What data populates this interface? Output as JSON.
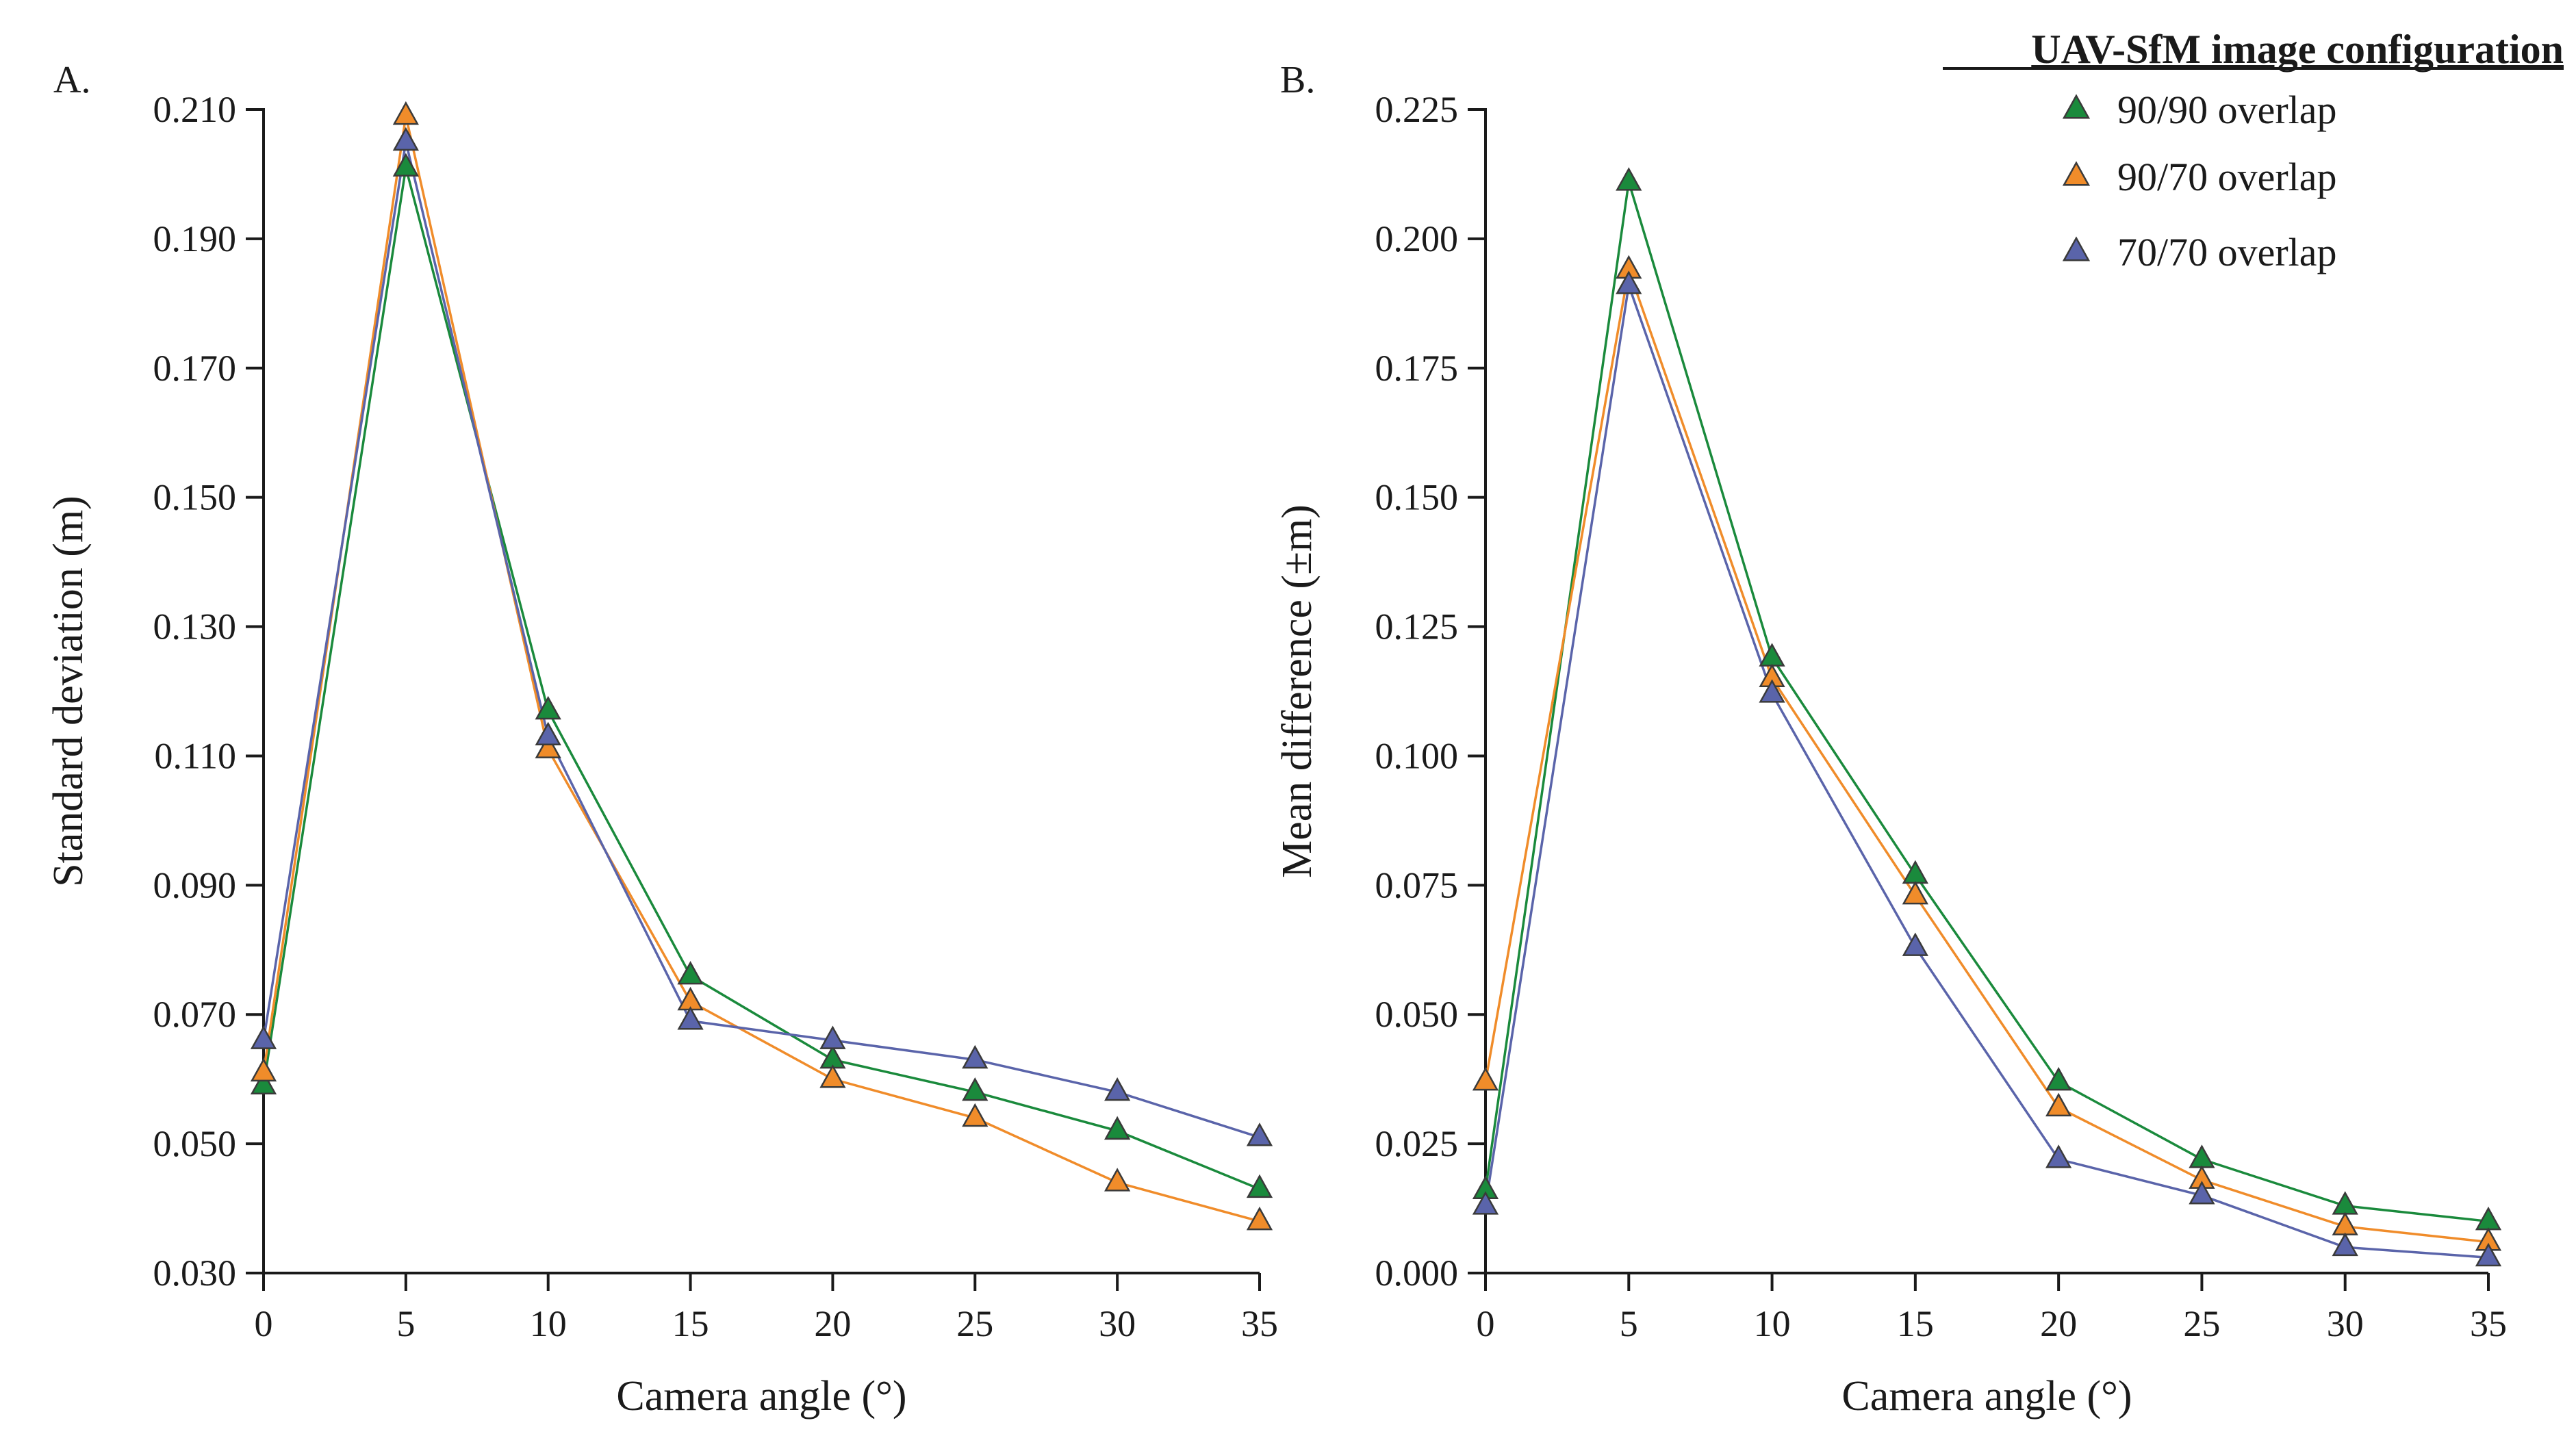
{
  "legend": {
    "title": "UAV-SfM image configuration",
    "entries": [
      {
        "name": "90/90 overlap",
        "color": "#1a8a3c"
      },
      {
        "name": "90/70 overlap",
        "color": "#f08c2a"
      },
      {
        "name": "70/70 overlap",
        "color": "#5a64aa"
      }
    ]
  },
  "chart_data": [
    {
      "type": "line",
      "panel_label": "A.",
      "title": "",
      "xlabel": "Camera angle (°)",
      "ylabel": "Standard deviation (m)",
      "x": [
        0,
        5,
        10,
        15,
        20,
        25,
        30,
        35
      ],
      "xticks": [
        "0",
        "5",
        "10",
        "15",
        "20",
        "25",
        "30",
        "35"
      ],
      "xlim": [
        0,
        35
      ],
      "ylim": [
        0.03,
        0.21
      ],
      "yticks": [
        "0.030",
        "0.050",
        "0.070",
        "0.090",
        "0.110",
        "0.130",
        "0.150",
        "0.170",
        "0.190",
        "0.210"
      ],
      "series": [
        {
          "name": "90/90 overlap",
          "color": "#1a8a3c",
          "x": [
            0,
            5,
            10,
            15,
            20,
            25,
            30,
            35
          ],
          "values": [
            0.059,
            0.201,
            0.117,
            0.076,
            0.063,
            0.058,
            0.052,
            0.043
          ]
        },
        {
          "name": "90/70 overlap",
          "color": "#f08c2a",
          "x": [
            0,
            5,
            10,
            15,
            20,
            25,
            30,
            35
          ],
          "values": [
            0.061,
            0.209,
            0.111,
            0.072,
            0.06,
            0.054,
            0.044,
            0.038
          ]
        },
        {
          "name": "70/70 overlap",
          "color": "#5a64aa",
          "x": [
            0,
            5,
            10,
            15,
            20,
            25,
            30,
            35
          ],
          "values": [
            0.066,
            0.205,
            0.113,
            0.069,
            0.066,
            0.063,
            0.058,
            0.051
          ]
        }
      ]
    },
    {
      "type": "line",
      "panel_label": "B.",
      "title": "",
      "xlabel": "Camera angle (°)",
      "ylabel": "Mean difference (±m)",
      "x": [
        0,
        5,
        10,
        15,
        20,
        25,
        30,
        35
      ],
      "xticks": [
        "0",
        "5",
        "10",
        "15",
        "20",
        "25",
        "30",
        "35"
      ],
      "xlim": [
        0,
        35
      ],
      "ylim": [
        0.0,
        0.225
      ],
      "yticks": [
        "0.000",
        "0.025",
        "0.050",
        "0.075",
        "0.100",
        "0.125",
        "0.150",
        "0.175",
        "0.200",
        "0.225"
      ],
      "series": [
        {
          "name": "90/90 overlap",
          "color": "#1a8a3c",
          "x": [
            0,
            5,
            10,
            15,
            20,
            25,
            30,
            35
          ],
          "values": [
            0.016,
            0.211,
            0.119,
            0.077,
            0.037,
            0.022,
            0.013,
            0.01
          ]
        },
        {
          "name": "90/70 overlap",
          "color": "#f08c2a",
          "x": [
            0,
            5,
            10,
            15,
            20,
            25,
            30,
            35
          ],
          "values": [
            0.037,
            0.194,
            0.115,
            0.073,
            0.032,
            0.018,
            0.009,
            0.006
          ]
        },
        {
          "name": "70/70 overlap",
          "color": "#5a64aa",
          "x": [
            0,
            5,
            10,
            15,
            20,
            25,
            30,
            35
          ],
          "values": [
            0.013,
            0.191,
            0.112,
            0.063,
            0.022,
            0.015,
            0.005,
            0.003
          ]
        }
      ]
    }
  ]
}
